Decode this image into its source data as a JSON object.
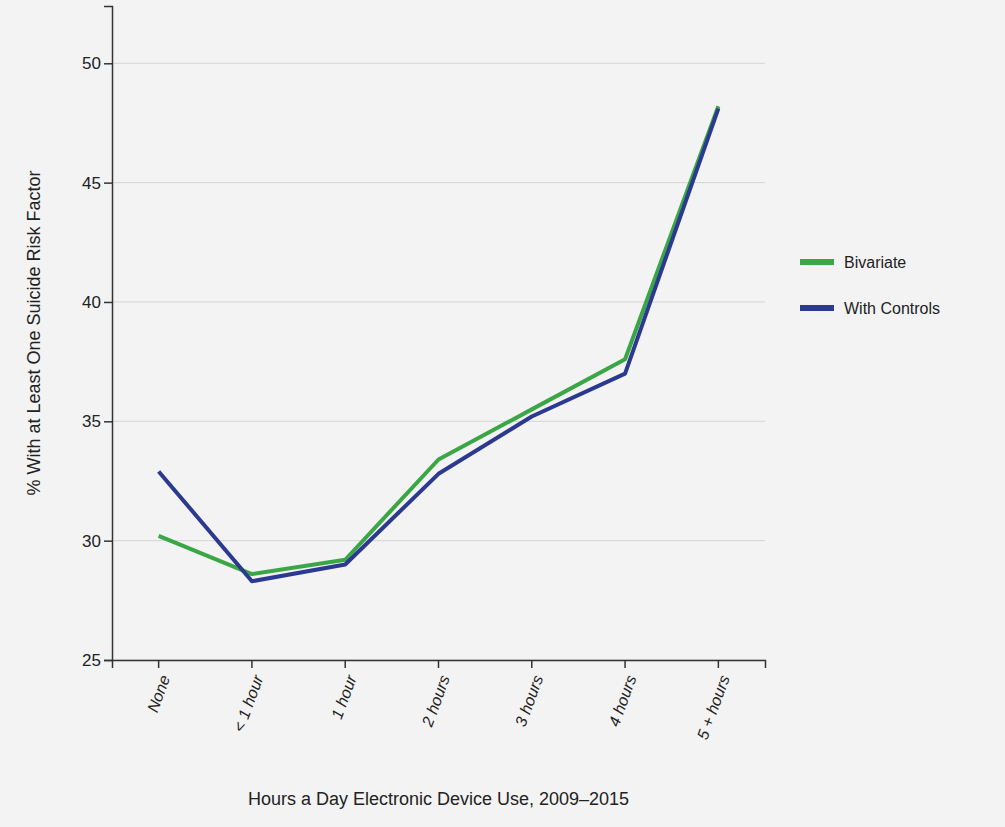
{
  "chart_data": {
    "type": "line",
    "x_label": "Hours a Day Electronic Device Use, 2009–2015",
    "y_label": "% With at Least One Suicide Risk Factor",
    "categories": [
      "None",
      "< 1 hour",
      "1 hour",
      "2 hours",
      "3 hours",
      "4 hours",
      "5 + hours"
    ],
    "series": [
      {
        "name": "Bivariate",
        "color": "#3aa646",
        "values": [
          30.2,
          28.6,
          29.2,
          33.4,
          35.5,
          37.6,
          48.2
        ]
      },
      {
        "name": "With Controls",
        "color": "#2b3990",
        "values": [
          32.9,
          28.3,
          29.0,
          32.8,
          35.2,
          37.0,
          48.1
        ]
      }
    ],
    "ylim": [
      25,
      52.4
    ],
    "yticks": [
      25,
      30,
      35,
      40,
      45,
      50
    ],
    "grid": true,
    "legend": "right",
    "marker": "none",
    "line_style": "solid"
  }
}
